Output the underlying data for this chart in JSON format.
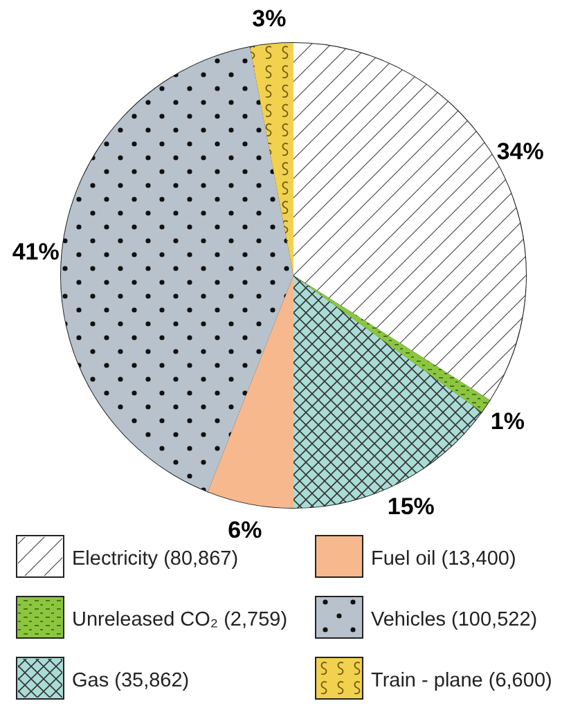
{
  "chart_data": {
    "type": "pie",
    "categories": [
      "Electricity (80,867)",
      "Unreleased CO₂ (2,759)",
      "Gas (35,862)",
      "Fuel oil (13,400)",
      "Vehicles (100,522)",
      "Train - plane (6,600)"
    ],
    "values": [
      34,
      1,
      15,
      6,
      41,
      3
    ],
    "value_labels": [
      "34%",
      "1%",
      "15%",
      "6%",
      "41%",
      "3%"
    ],
    "colors": [
      "#ffffff",
      "#8cc63f",
      "#a9dcd6",
      "#f6b88c",
      "#b8c2cc",
      "#f2d14f"
    ],
    "legend": "bottom"
  }
}
